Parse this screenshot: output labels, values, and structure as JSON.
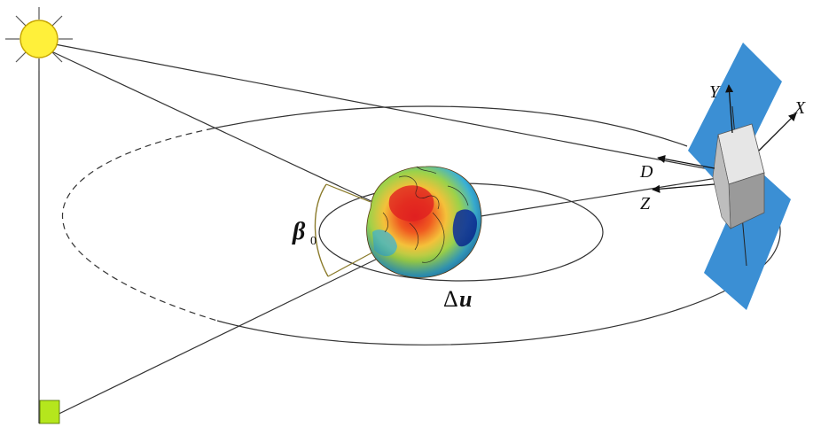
{
  "labels": {
    "beta": "β",
    "beta_sub": "0",
    "delta": "Δ",
    "u": "u",
    "D": "D",
    "Z": "Z",
    "Y": "Y",
    "X": "X"
  },
  "colors": {
    "sun_fill": "#FFF03A",
    "sun_stroke": "#C8A800",
    "panel": "#3B8FD4",
    "box_top": "#E6E6E6",
    "box_side": "#9A9A9A",
    "right_angle_marker": "#B5E61D",
    "line": "#333333",
    "angle_arc": "#8A7A2A",
    "earth_hot": "#E02020",
    "earth_cool": "#38B0D8",
    "earth_deep": "#0A2A9A"
  },
  "icons": {
    "sun": "sun-icon",
    "earth": "geoid-earth-icon",
    "satellite": "satellite-icon"
  }
}
